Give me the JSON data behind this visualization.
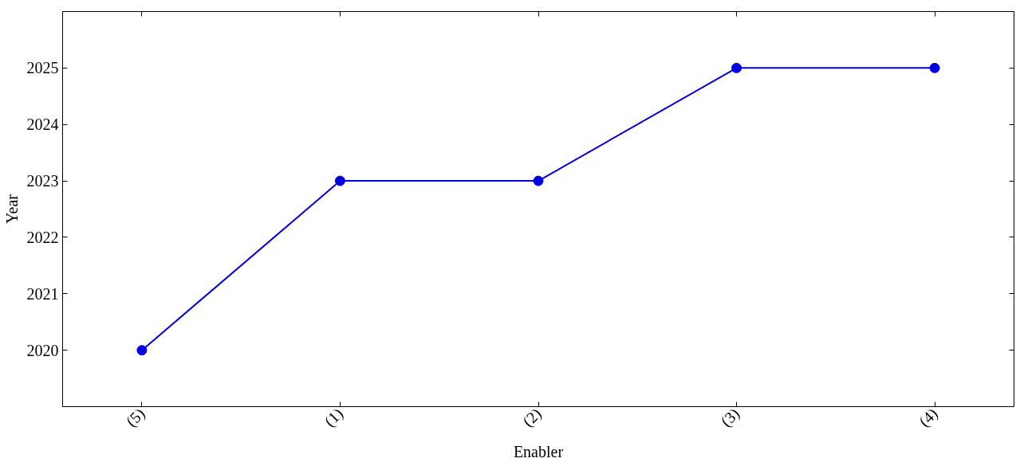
{
  "chart_data": {
    "type": "line",
    "xlabel": "Enabler",
    "ylabel": "Year",
    "categories": [
      "(5)",
      "(1)",
      "(2)",
      "(3)",
      "(4)"
    ],
    "series": [
      {
        "color": "#0000e6",
        "values": [
          2020,
          2023,
          2023,
          2025,
          2025
        ]
      }
    ],
    "ylim": [
      2019,
      2026
    ],
    "yticks": [
      2020,
      2021,
      2022,
      2023,
      2024,
      2025
    ],
    "marker": "circle",
    "line_style": "solid",
    "grid": false
  }
}
